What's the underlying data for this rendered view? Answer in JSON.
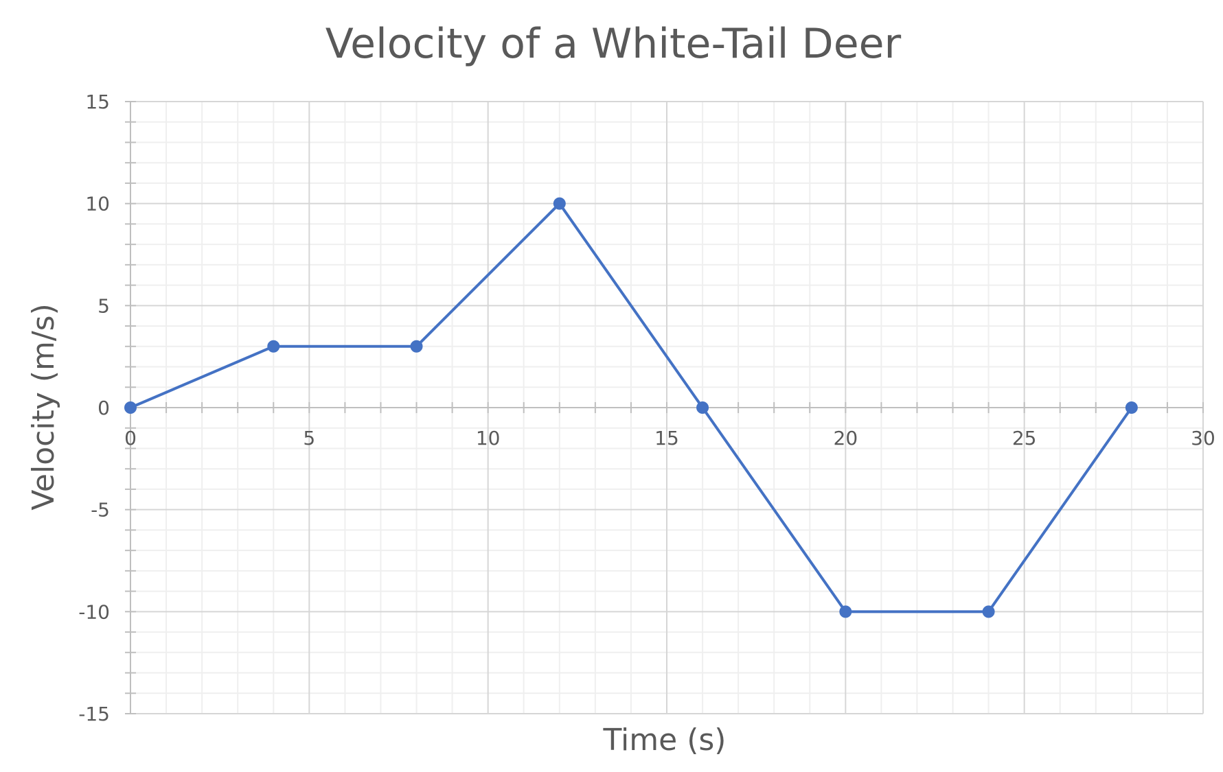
{
  "chart_data": {
    "type": "scatter",
    "title": "Velocity of a White-Tail Deer",
    "xlabel": "Time (s)",
    "ylabel": "Velocity (m/s)",
    "xlim": [
      0,
      30
    ],
    "ylim": [
      -15,
      15
    ],
    "x_ticks": [
      0,
      5,
      10,
      15,
      20,
      25,
      30
    ],
    "y_ticks": [
      15,
      10,
      5,
      0,
      -5,
      -10,
      -15
    ],
    "x_tick_labels": [
      "0",
      "5",
      "10",
      "15",
      "20",
      "25",
      "30"
    ],
    "y_tick_labels": [
      "15",
      "10",
      "5",
      "0",
      "-5",
      "-10",
      "-15"
    ],
    "x_major_step": 5,
    "x_minor_step": 1,
    "y_major_step": 5,
    "y_minor_step": 1,
    "grid": true,
    "legend": "none",
    "series": [
      {
        "color": "#4472C4",
        "marker": "circle",
        "lines": true,
        "x": [
          0,
          4,
          8,
          12,
          16,
          20,
          24,
          28
        ],
        "y": [
          0,
          3,
          3,
          10,
          0,
          -10,
          -10,
          0
        ]
      }
    ]
  }
}
